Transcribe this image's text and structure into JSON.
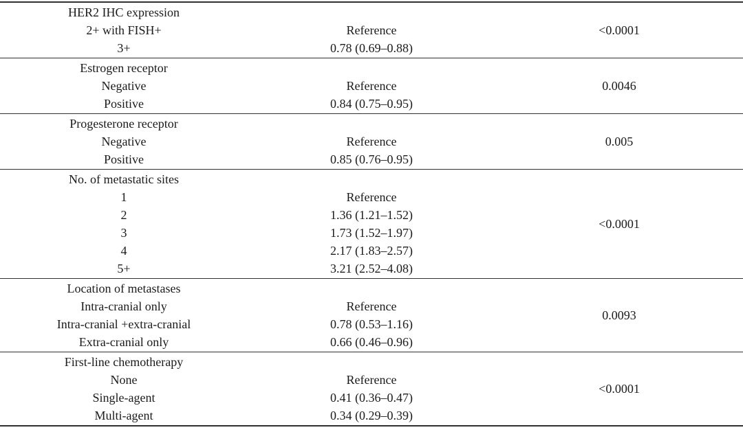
{
  "table": {
    "sections": [
      {
        "header": "HER2 IHC expression",
        "rows": [
          {
            "label": "2+ with FISH+",
            "value": "Reference"
          },
          {
            "label": "3+",
            "value": "0.78 (0.69–0.88)"
          }
        ],
        "p_value": "<0.0001"
      },
      {
        "header": "Estrogen receptor",
        "rows": [
          {
            "label": "Negative",
            "value": "Reference"
          },
          {
            "label": "Positive",
            "value": "0.84 (0.75–0.95)"
          }
        ],
        "p_value": "0.0046"
      },
      {
        "header": "Progesterone receptor",
        "rows": [
          {
            "label": "Negative",
            "value": "Reference"
          },
          {
            "label": "Positive",
            "value": "0.85 (0.76–0.95)"
          }
        ],
        "p_value": "0.005"
      },
      {
        "header": "No. of metastatic sites",
        "rows": [
          {
            "label": "1",
            "value": "Reference"
          },
          {
            "label": "2",
            "value": "1.36 (1.21–1.52)"
          },
          {
            "label": "3",
            "value": "1.73 (1.52–1.97)"
          },
          {
            "label": "4",
            "value": "2.17 (1.83–2.57)"
          },
          {
            "label": "5+",
            "value": "3.21 (2.52–4.08)"
          }
        ],
        "p_value": "<0.0001"
      },
      {
        "header": "Location of metastases",
        "rows": [
          {
            "label": "Intra-cranial only",
            "value": "Reference"
          },
          {
            "label": "Intra-cranial +extra-cranial",
            "value": "0.78 (0.53–1.16)"
          },
          {
            "label": "Extra-cranial only",
            "value": "0.66 (0.46–0.96)"
          }
        ],
        "p_value": "0.0093"
      },
      {
        "header": "First-line chemotherapy",
        "rows": [
          {
            "label": "None",
            "value": "Reference"
          },
          {
            "label": "Single-agent",
            "value": "0.41 (0.36–0.47)"
          },
          {
            "label": "Multi-agent",
            "value": "0.34 (0.29–0.39)"
          }
        ],
        "p_value": "<0.0001"
      }
    ]
  }
}
